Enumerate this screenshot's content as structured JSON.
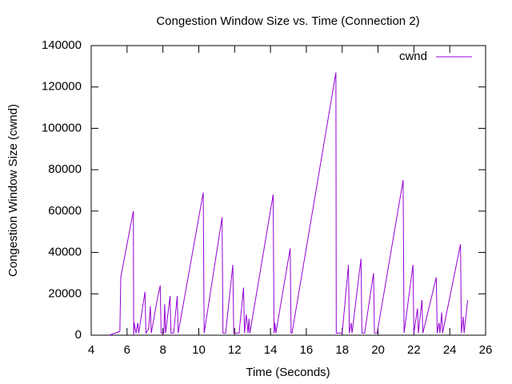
{
  "chart_data": {
    "type": "line",
    "title": "Congestion Window Size vs. Time (Connection 2)",
    "x_label": "Time (Seconds)",
    "y_label": "Congestion Window Size (cwnd)",
    "xlim": [
      4,
      26
    ],
    "xticks": [
      4,
      6,
      8,
      10,
      12,
      14,
      16,
      18,
      20,
      22,
      24,
      26
    ],
    "ylim": [
      0,
      140000
    ],
    "yticks": [
      0,
      20000,
      40000,
      60000,
      80000,
      100000,
      120000,
      140000
    ],
    "legend": "top-right",
    "grid": false,
    "x": [
      5.0,
      5.5,
      5.6,
      5.65,
      6.35,
      6.37,
      6.4,
      6.5,
      6.6,
      6.65,
      7.0,
      7.05,
      7.2,
      7.3,
      7.35,
      7.7,
      7.85,
      7.9,
      8.05,
      8.1,
      8.15,
      8.4,
      8.45,
      8.6,
      8.8,
      8.85,
      10.25,
      10.3,
      11.3,
      11.35,
      11.5,
      11.9,
      11.95,
      12.25,
      12.5,
      12.55,
      12.65,
      12.75,
      12.8,
      12.85,
      14.15,
      14.2,
      14.25,
      14.3,
      15.1,
      15.15,
      15.2,
      17.65,
      17.67,
      18.0,
      18.35,
      18.4,
      18.5,
      18.55,
      19.05,
      19.1,
      19.25,
      19.75,
      19.8,
      19.95,
      21.4,
      21.45,
      21.95,
      22.0,
      22.2,
      22.25,
      22.45,
      22.5,
      23.25,
      23.3,
      23.4,
      23.45,
      23.55,
      23.6,
      24.6,
      24.65,
      24.75,
      24.8,
      25.0
    ],
    "series": [
      {
        "name": "cwnd",
        "color": "#9400d3",
        "values": [
          0,
          1500,
          2000,
          28000,
          60000,
          0,
          6000,
          1000,
          6000,
          1000,
          21000,
          1000,
          3000,
          14000,
          1000,
          18000,
          24000,
          1000,
          1000,
          15000,
          1000,
          19000,
          1000,
          1000,
          19000,
          1000,
          69000,
          1000,
          57000,
          1000,
          1000,
          34000,
          1000,
          1000,
          23000,
          1000,
          10000,
          1000,
          8000,
          1000,
          68000,
          1000,
          6000,
          1000,
          42000,
          1000,
          1000,
          127000,
          1000,
          1000,
          34000,
          1000,
          6000,
          1000,
          37000,
          1000,
          1000,
          30000,
          1000,
          1000,
          75000,
          1000,
          34000,
          1000,
          13000,
          1000,
          17000,
          1000,
          28000,
          1000,
          6000,
          1000,
          11000,
          1000,
          44000,
          1000,
          9000,
          1000,
          17000
        ]
      }
    ]
  }
}
